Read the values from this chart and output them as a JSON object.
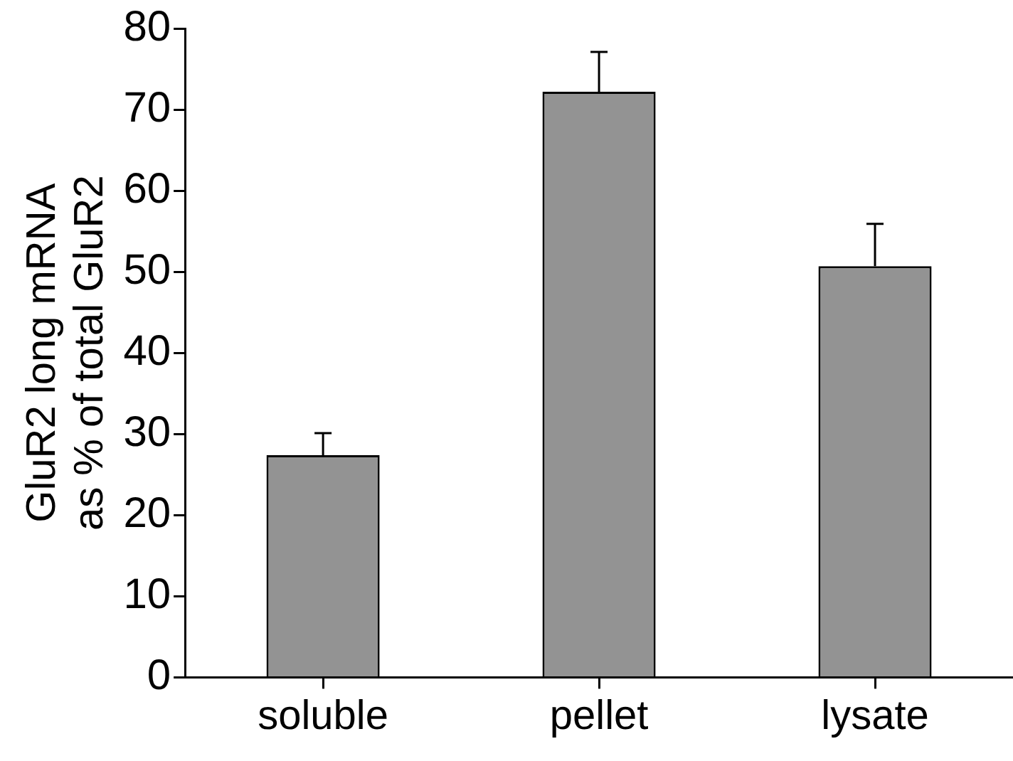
{
  "chart_data": {
    "type": "bar",
    "ylabel": "GluR2 long mRNA\nas % of total GluR2",
    "categories": [
      "soluble",
      "pellet",
      "lysate"
    ],
    "values": [
      27.4,
      72.2,
      50.7
    ],
    "errors": [
      [
        27.4,
        30.1
      ],
      [
        72.2,
        77.1
      ],
      [
        50.7,
        55.9
      ]
    ],
    "color": "#939393",
    "ylim": [
      0,
      80
    ],
    "yticks": [
      0,
      10,
      20,
      30,
      40,
      50,
      60,
      70,
      80
    ],
    "grid": false,
    "legend": false
  }
}
